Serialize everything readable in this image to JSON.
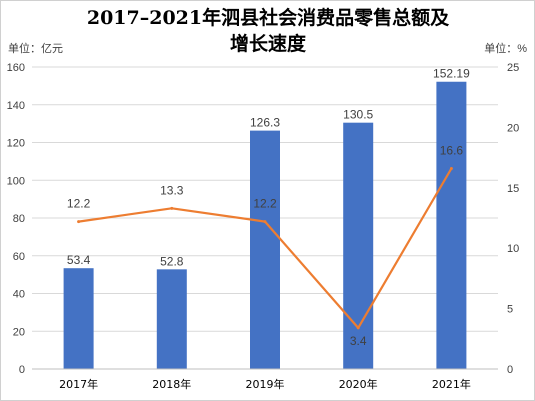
{
  "chart_data": {
    "type": "bar",
    "title_line1": "2017–2021年泗县社会消费品零售总额及",
    "title_line2": "增长速度",
    "y_left_unit": "单位：亿元",
    "y_right_unit": "单位：%",
    "categories": [
      "2017年",
      "2018年",
      "2019年",
      "2020年",
      "2021年"
    ],
    "series": [
      {
        "type": "bar",
        "axis": "left",
        "color": "#4472C4",
        "values": [
          53.4,
          52.8,
          126.3,
          130.5,
          152.19
        ],
        "labels": [
          "53.4",
          "52.8",
          "126.3",
          "130.5",
          "152.19"
        ]
      },
      {
        "type": "line",
        "axis": "right",
        "color": "#ED7D31",
        "values": [
          12.2,
          13.3,
          12.2,
          3.4,
          16.6
        ],
        "labels": [
          "12.2",
          "13.3",
          "12.2",
          "3.4",
          "16.6"
        ]
      }
    ],
    "y_left": {
      "min": 0,
      "max": 160,
      "step": 20
    },
    "y_right": {
      "min": 0,
      "max": 25,
      "step": 5
    }
  }
}
